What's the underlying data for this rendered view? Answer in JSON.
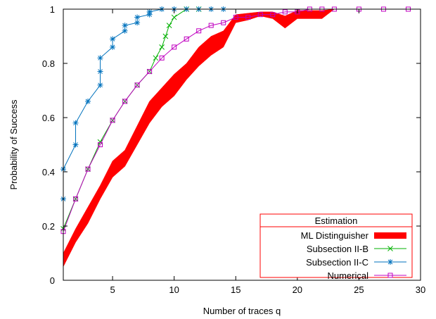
{
  "chart_data": {
    "type": "line",
    "title": "",
    "xlabel": "Number of traces q",
    "ylabel": "Probability of Success",
    "xlim": [
      1,
      30
    ],
    "ylim": [
      0,
      1
    ],
    "x_ticks": [
      5,
      10,
      15,
      20,
      25,
      30
    ],
    "y_ticks": [
      0,
      0.2,
      0.4,
      0.6,
      0.8,
      1
    ],
    "x_tick_labels": [
      "5",
      "10",
      "15",
      "20",
      "25",
      "30"
    ],
    "y_tick_labels": [
      "0",
      "0.2",
      "0.4",
      "0.6",
      "0.8",
      "1"
    ],
    "grid": false,
    "legend": {
      "placement": "bottom-right",
      "title": "Estimation",
      "entries": [
        "ML Distinguisher",
        "Subsection II-B",
        "Subsection II-C",
        "Numerical"
      ]
    },
    "colors": {
      "ML Distinguisher": "#ff0000",
      "Subsection II-B": "#00b000",
      "Subsection II-C": "#0072bd",
      "Numerical": "#c000c0"
    },
    "series": [
      {
        "name": "ML Distinguisher",
        "style": "band",
        "x": [
          1,
          2,
          3,
          4,
          5,
          6,
          7,
          8,
          9,
          10,
          11,
          12,
          13,
          14,
          15,
          16,
          17,
          18,
          19,
          20,
          21,
          22,
          23
        ],
        "lower": [
          0.05,
          0.14,
          0.21,
          0.3,
          0.38,
          0.42,
          0.5,
          0.58,
          0.64,
          0.68,
          0.74,
          0.79,
          0.83,
          0.86,
          0.95,
          0.96,
          0.975,
          0.965,
          0.93,
          0.965,
          0.965,
          0.965,
          1.0
        ],
        "upper": [
          0.1,
          0.19,
          0.27,
          0.35,
          0.44,
          0.48,
          0.57,
          0.66,
          0.71,
          0.76,
          0.8,
          0.86,
          0.9,
          0.92,
          0.98,
          0.985,
          0.99,
          0.99,
          0.975,
          0.995,
          0.995,
          0.995,
          1.0
        ]
      },
      {
        "name": "Subsection II-B",
        "marker": "x",
        "x": [
          1,
          2,
          3,
          4,
          5,
          6,
          7,
          8,
          8.5,
          9,
          9.3,
          9.6,
          10,
          11,
          12
        ],
        "values": [
          0.19,
          0.3,
          0.41,
          0.51,
          0.59,
          0.66,
          0.72,
          0.77,
          0.82,
          0.86,
          0.9,
          0.94,
          0.97,
          1.0,
          1.0
        ]
      },
      {
        "name": "Subsection II-C",
        "marker": "*",
        "x": [
          1,
          1,
          2,
          2,
          3,
          4,
          4,
          4,
          5,
          5,
          6,
          6,
          7,
          7,
          8,
          8,
          9,
          10,
          11,
          12,
          13,
          14
        ],
        "values": [
          0.3,
          0.41,
          0.5,
          0.58,
          0.66,
          0.72,
          0.77,
          0.82,
          0.86,
          0.89,
          0.92,
          0.94,
          0.95,
          0.97,
          0.98,
          0.99,
          1.0,
          1.0,
          1.0,
          1.0,
          1.0,
          1.0
        ]
      },
      {
        "name": "Numerical",
        "marker": "square",
        "x": [
          1,
          2,
          3,
          4,
          5,
          6,
          7,
          8,
          9,
          10,
          11,
          12,
          13,
          14,
          15,
          16,
          17,
          18,
          19,
          20,
          21,
          22,
          23,
          25,
          27,
          29
        ],
        "values": [
          0.18,
          0.3,
          0.41,
          0.5,
          0.59,
          0.66,
          0.72,
          0.77,
          0.82,
          0.86,
          0.89,
          0.92,
          0.94,
          0.95,
          0.97,
          0.97,
          0.98,
          0.98,
          0.99,
          0.99,
          1.0,
          1.0,
          1.0,
          1.0,
          1.0,
          1.0
        ]
      }
    ]
  }
}
